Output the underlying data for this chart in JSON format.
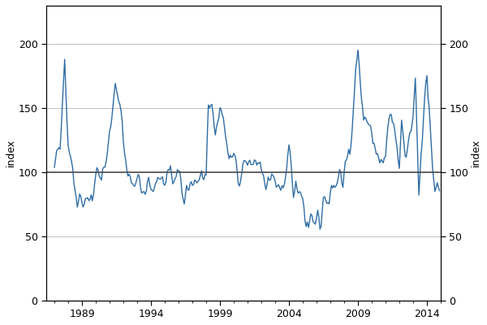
{
  "line_color": "#2e6da4",
  "reference_color": "#4d4d4d",
  "reference_value": 100,
  "background_color": "#ffffff",
  "grid_color": "#c0c0c0",
  "ylim": [
    0,
    230
  ],
  "yticks": [
    0,
    50,
    100,
    150,
    200
  ],
  "ylabel_left": "index",
  "ylabel_right": "index",
  "xlabel": "",
  "linewidth": 1.0,
  "start_year": 1987,
  "start_month": 1,
  "end_year": 2014,
  "end_month": 12,
  "xtick_years": [
    1989,
    1994,
    1999,
    2004,
    2009,
    2014
  ],
  "figsize": [
    6.0,
    4.0
  ],
  "dpi": 100
}
